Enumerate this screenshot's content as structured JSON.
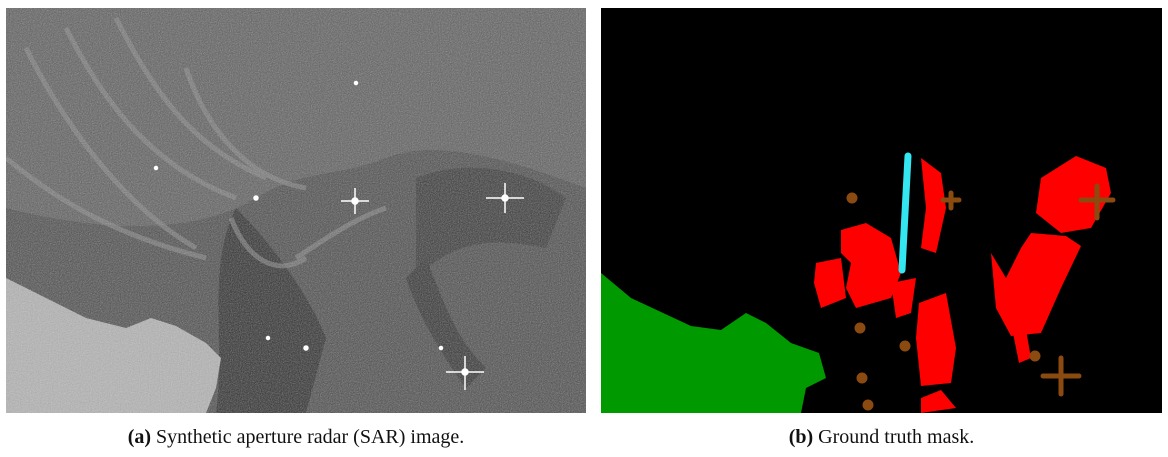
{
  "figure": {
    "panels": [
      {
        "label": "(a)",
        "caption": "Synthetic aperture radar (SAR) image."
      },
      {
        "label": "(b)",
        "caption": "Ground truth mask."
      }
    ]
  }
}
